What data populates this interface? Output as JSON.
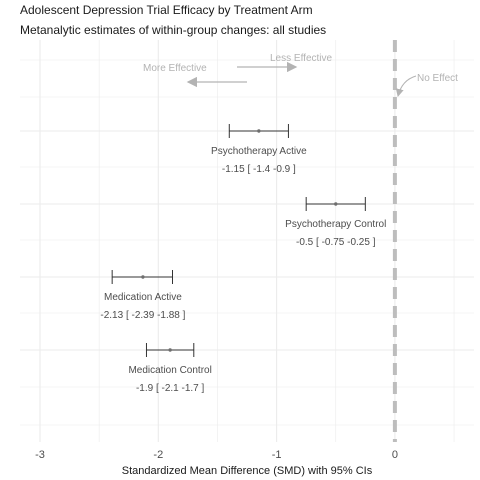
{
  "chart_data": {
    "type": "forest",
    "title": "Adolescent Depression Trial Efficacy by Treatment Arm",
    "subtitle": "Metanalytic estimates of within-group changes: all studies",
    "xlabel": "Standardized Mean Difference (SMD) with 95% CIs",
    "ylabel": "",
    "xlim": [
      -3.25,
      0.5
    ],
    "x_ticks": [
      -3,
      -2,
      -1,
      0
    ],
    "x_tick_labels": [
      "-3",
      "-2",
      "-1",
      "0"
    ],
    "grid": true,
    "reference_line": {
      "x": 0,
      "style": "dashed",
      "label": "No Effect"
    },
    "direction_annotations": {
      "more_effective": "More Effective",
      "less_effective": "Less Effective"
    },
    "rows": [
      {
        "name": "Psychotherapy Active",
        "estimate": -1.15,
        "ci_low": -1.4,
        "ci_high": -0.9,
        "ci_label": "-1.15 [ -1.4 -0.9 ]"
      },
      {
        "name": "Psychotherapy Control",
        "estimate": -0.5,
        "ci_low": -0.75,
        "ci_high": -0.25,
        "ci_label": "-0.5 [ -0.75 -0.25 ]"
      },
      {
        "name": "Medication Active",
        "estimate": -2.13,
        "ci_low": -2.39,
        "ci_high": -1.88,
        "ci_label": "-2.13 [ -2.39 -1.88 ]"
      },
      {
        "name": "Medication Control",
        "estimate": -1.9,
        "ci_low": -2.1,
        "ci_high": -1.7,
        "ci_label": "-1.9 [ -2.1 -1.7 ]"
      }
    ],
    "colors": {
      "annotation": "#b3b3b3",
      "point": "#6e6e6e",
      "ci": "#333333",
      "grid": "#ebebeb",
      "reference": "#bdbdbd",
      "text": "#4d4d4d"
    }
  }
}
